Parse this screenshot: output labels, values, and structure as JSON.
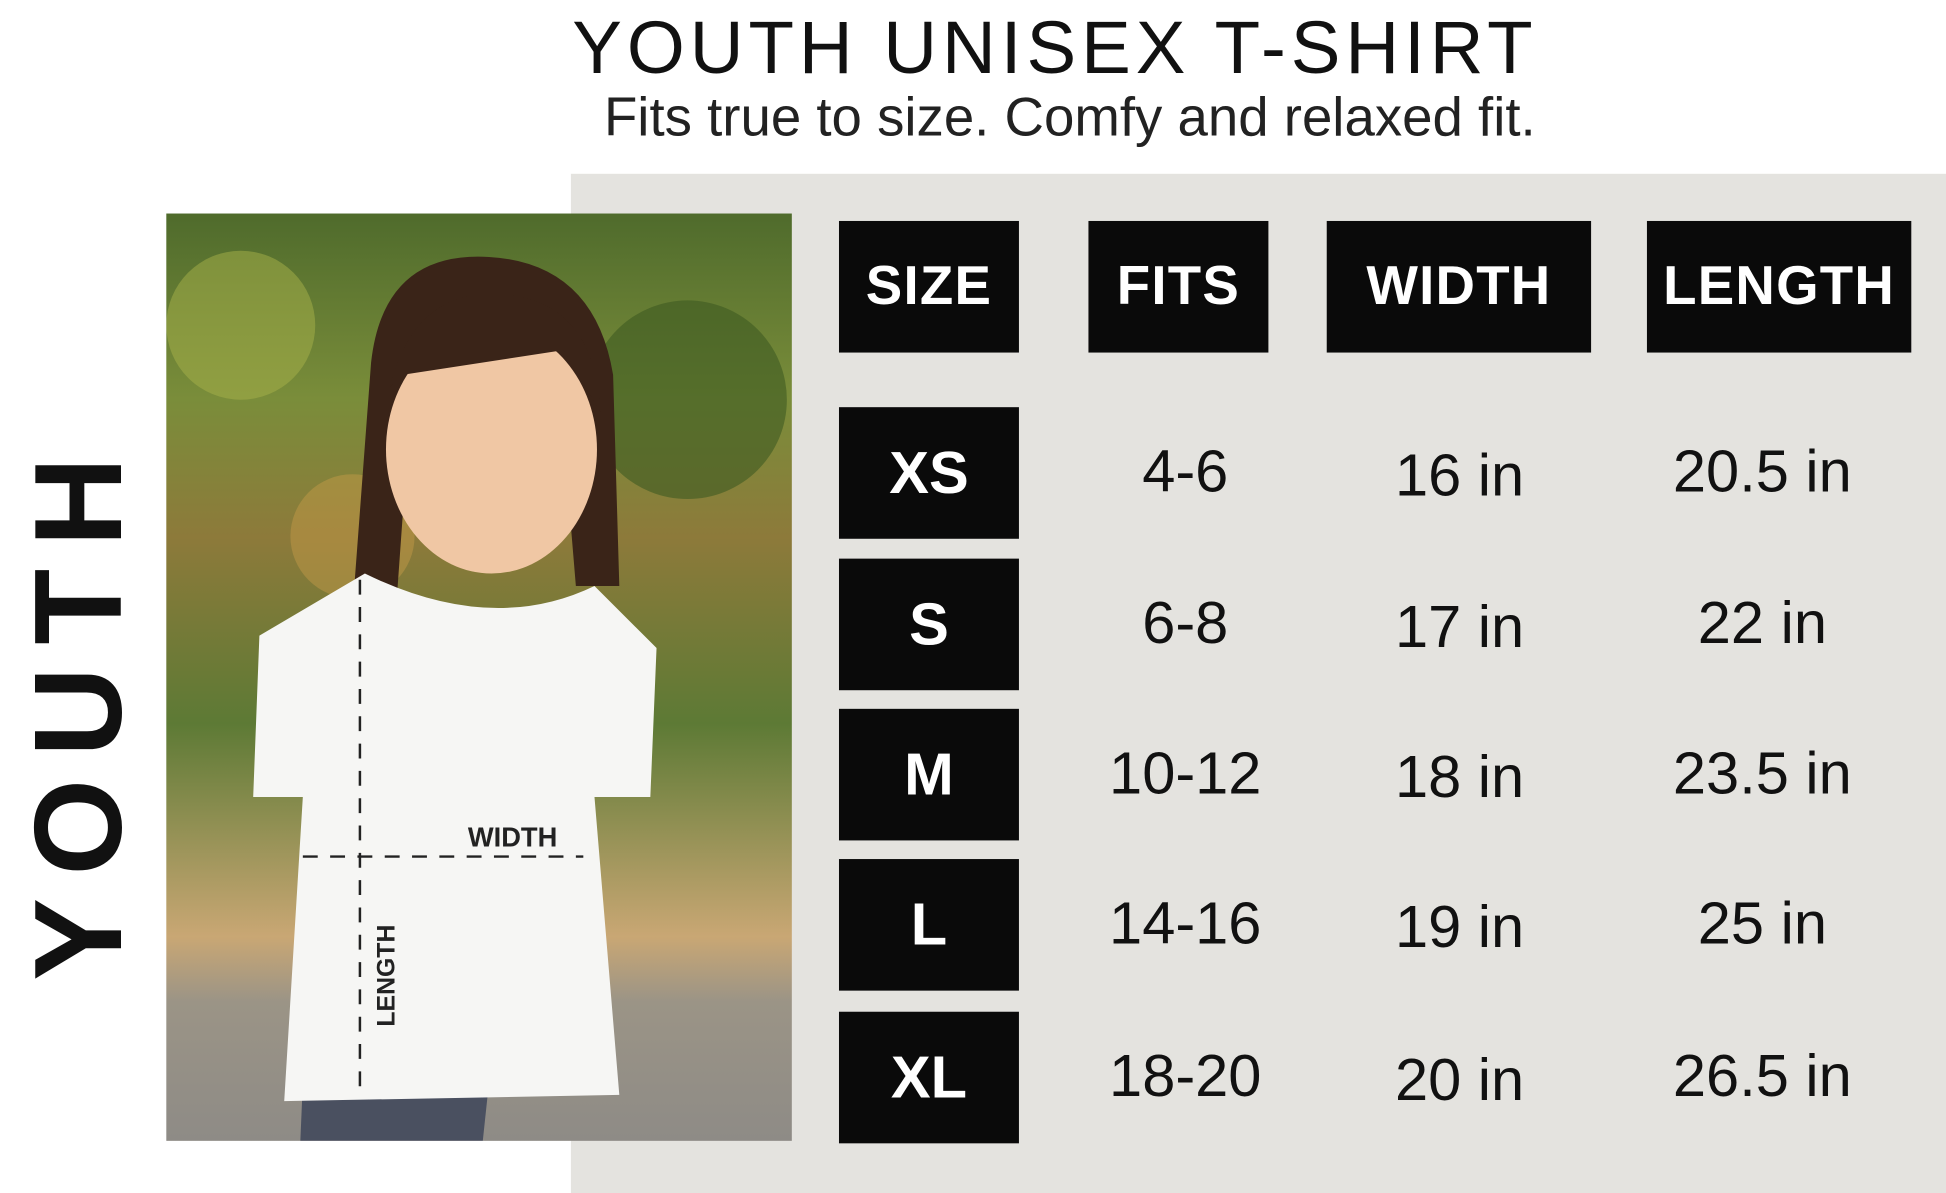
{
  "title": "YOUTH UNISEX T-SHIRT",
  "subtitle": "Fits true to size. Comfy and relaxed fit.",
  "side_label": "YOUTH",
  "photo": {
    "width_label": "WIDTH",
    "length_label": "LENGTH"
  },
  "colors": {
    "panel": "#e4e3df",
    "box": "#0a0a0a"
  },
  "table": {
    "headers": [
      "SIZE",
      "FITS",
      "WIDTH",
      "LENGTH"
    ],
    "rows": [
      {
        "size": "XS",
        "fits": "4-6",
        "width": "16 in",
        "length": "20.5 in"
      },
      {
        "size": "S",
        "fits": "6-8",
        "width": "17 in",
        "length": "22 in"
      },
      {
        "size": "M",
        "fits": "10-12",
        "width": "18 in",
        "length": "23.5 in"
      },
      {
        "size": "L",
        "fits": "14-16",
        "width": "19 in",
        "length": "25 in"
      },
      {
        "size": "XL",
        "fits": "18-20",
        "width": "20 in",
        "length": "26.5 in"
      }
    ]
  }
}
